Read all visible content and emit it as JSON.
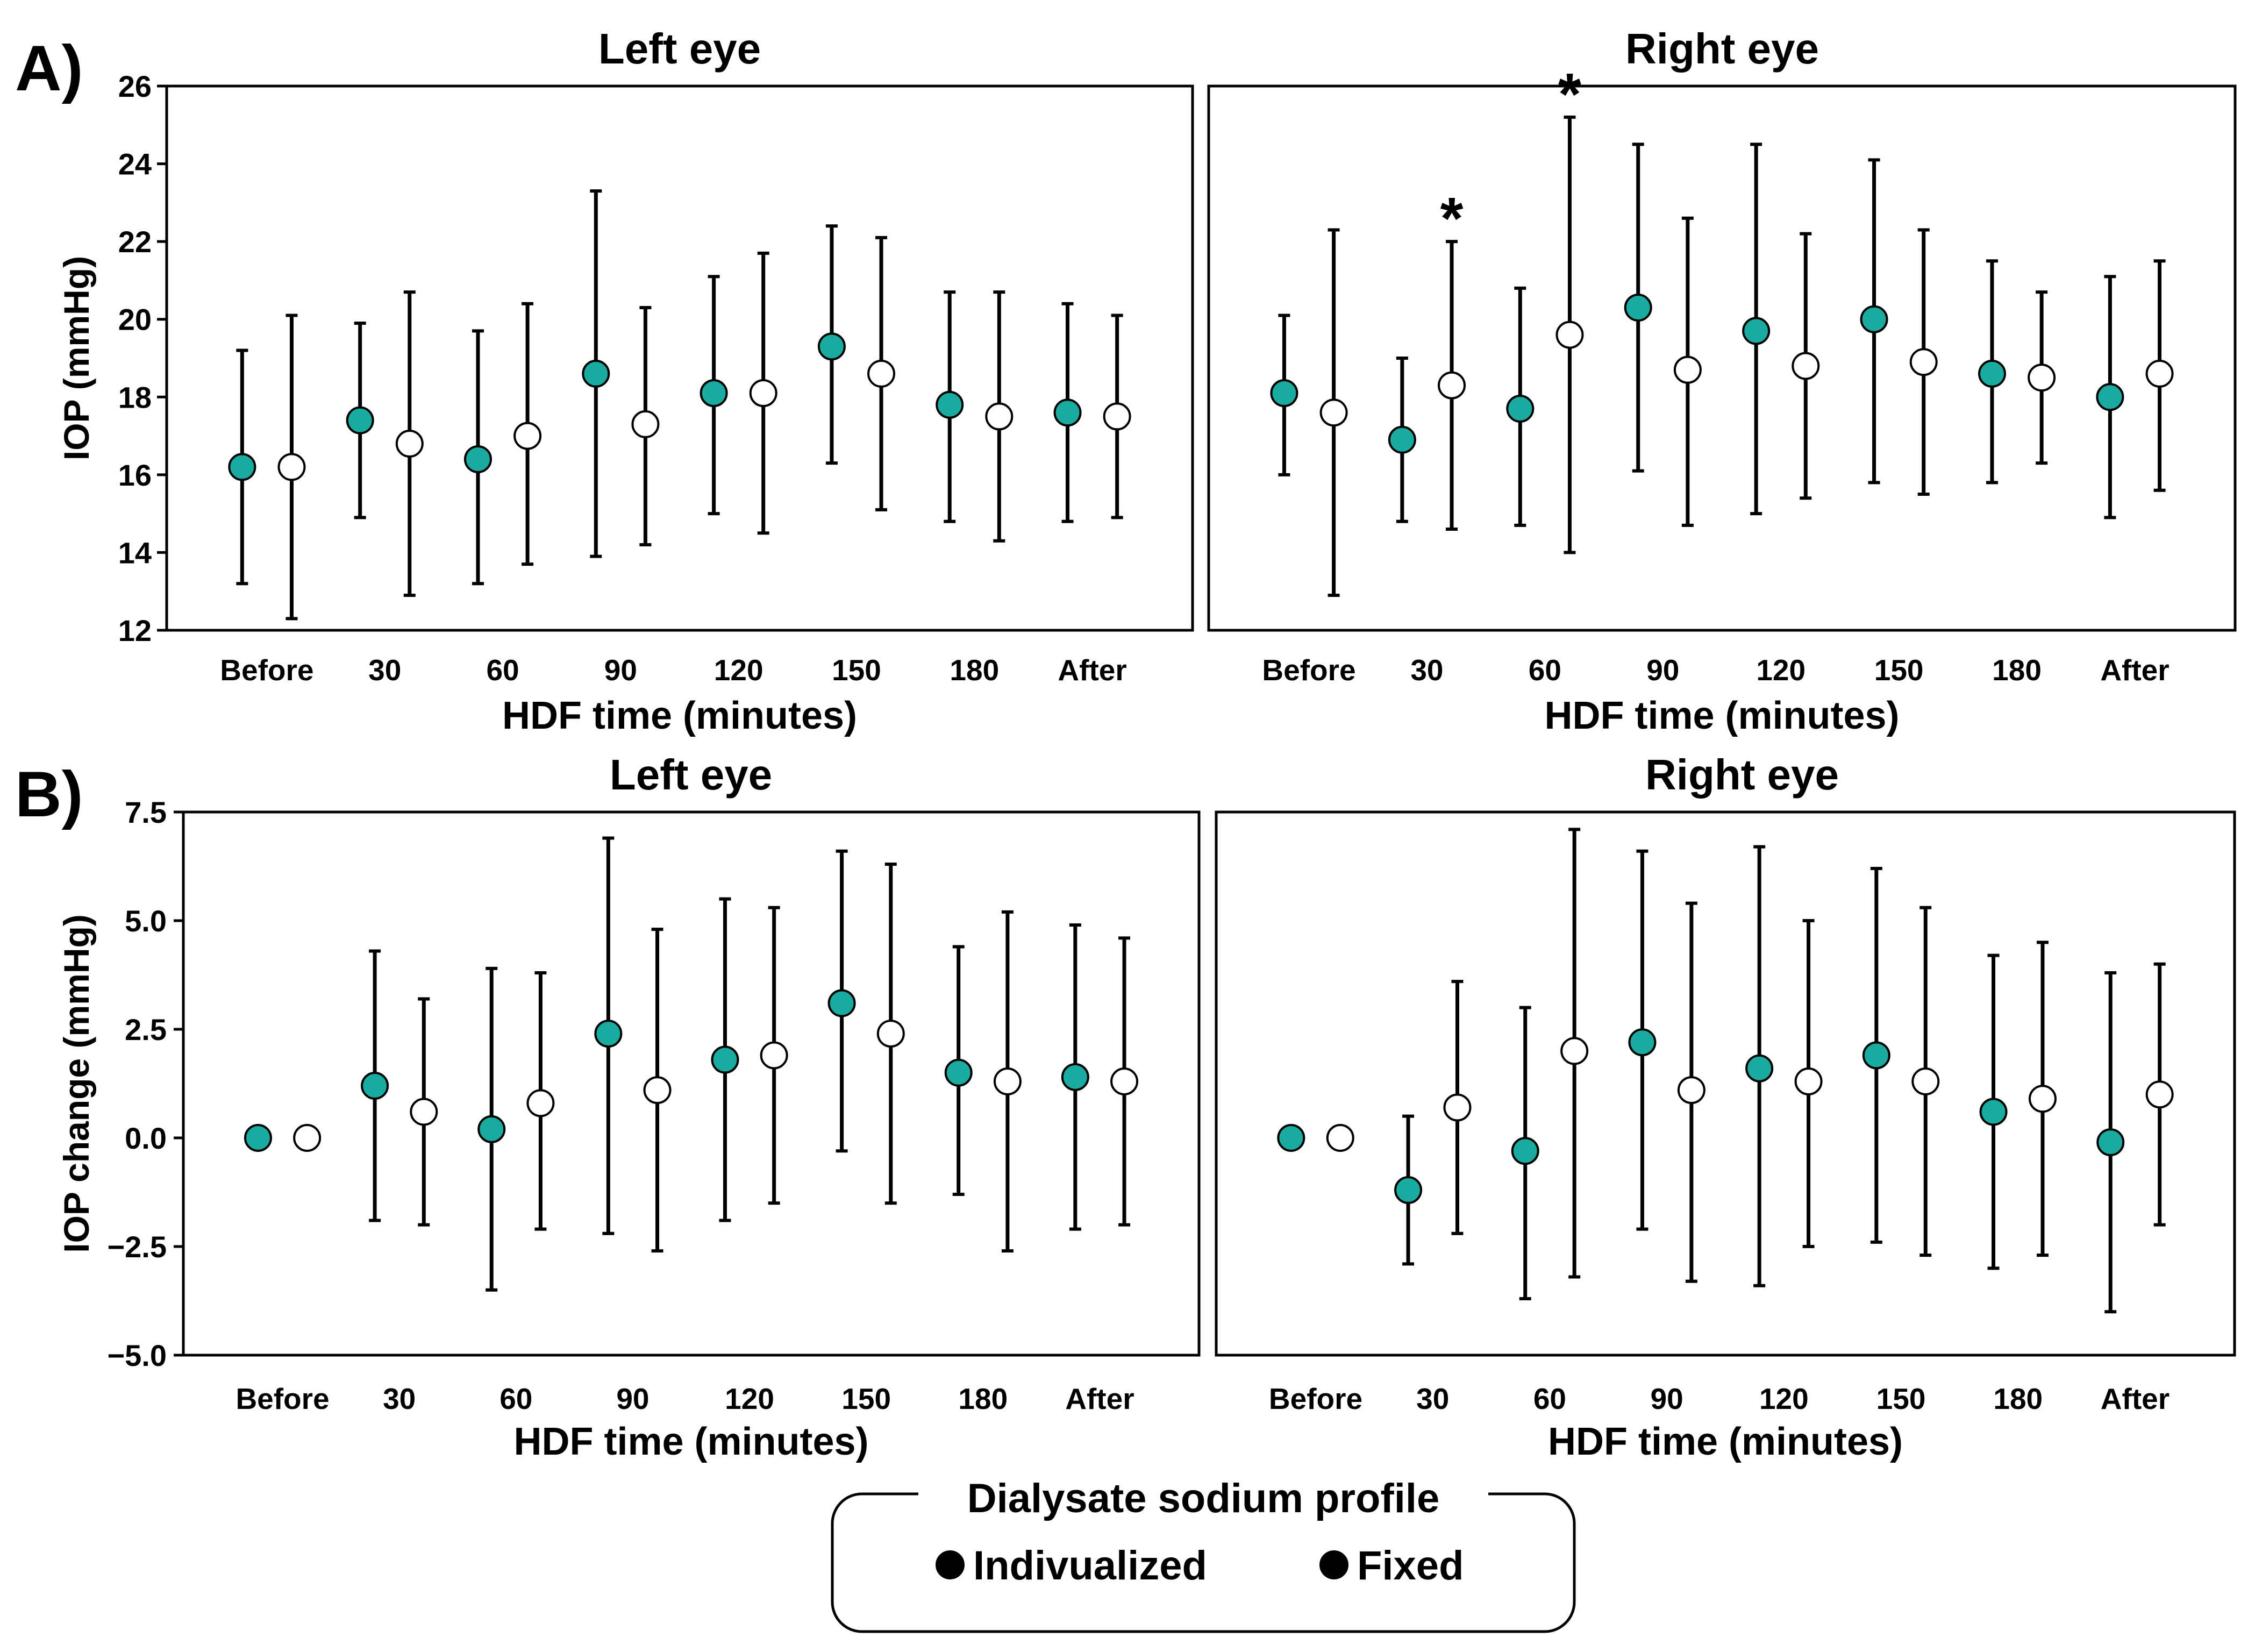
{
  "panels": [
    {
      "label": "A)"
    },
    {
      "label": "B)"
    }
  ],
  "legend": {
    "title": "Dialysate sodium profile",
    "items": [
      {
        "label": "Indivualized",
        "color": "#1aaba0",
        "marker": "filled-circle"
      },
      {
        "label": "Fixed",
        "color": "#ffffff",
        "marker": "open-circle"
      }
    ]
  },
  "chart_data": [
    {
      "type": "scatter",
      "panel": "A",
      "title": "Left eye",
      "xlabel": "HDF time (minutes)",
      "ylabel": "IOP (mmHg)",
      "categories": [
        "Before",
        "30",
        "60",
        "90",
        "120",
        "150",
        "180",
        "After"
      ],
      "ylim": [
        12,
        26
      ],
      "yticks": [
        "12",
        "14",
        "16",
        "18",
        "20",
        "22",
        "24",
        "26"
      ],
      "series": [
        {
          "name": "Indivualized",
          "values": [
            16.2,
            17.4,
            16.4,
            18.6,
            18.1,
            19.3,
            17.8,
            17.6
          ],
          "lower": [
            13.2,
            14.9,
            13.2,
            13.9,
            15.0,
            16.3,
            14.8,
            14.8
          ],
          "upper": [
            19.2,
            19.9,
            19.7,
            23.3,
            21.1,
            22.4,
            20.7,
            20.4
          ]
        },
        {
          "name": "Fixed",
          "values": [
            16.2,
            16.8,
            17.0,
            17.3,
            18.1,
            18.6,
            17.5,
            17.5
          ],
          "lower": [
            12.3,
            12.9,
            13.7,
            14.2,
            14.5,
            15.1,
            14.3,
            14.9
          ],
          "upper": [
            20.1,
            20.7,
            20.4,
            20.3,
            21.7,
            22.1,
            20.7,
            20.1
          ]
        }
      ],
      "annotations": []
    },
    {
      "type": "scatter",
      "panel": "A",
      "title": "Right eye",
      "xlabel": "HDF time (minutes)",
      "ylabel": "",
      "categories": [
        "Before",
        "30",
        "60",
        "90",
        "120",
        "150",
        "180",
        "After"
      ],
      "ylim": [
        12,
        26
      ],
      "yticks": [],
      "series": [
        {
          "name": "Indivualized",
          "values": [
            18.1,
            16.9,
            17.7,
            20.3,
            19.7,
            20.0,
            18.6,
            18.0
          ],
          "lower": [
            16.0,
            14.8,
            14.7,
            16.1,
            15.0,
            15.8,
            15.8,
            14.9
          ],
          "upper": [
            20.1,
            19.0,
            20.8,
            24.5,
            24.5,
            24.1,
            21.5,
            21.1
          ]
        },
        {
          "name": "Fixed",
          "values": [
            17.6,
            18.3,
            19.6,
            18.7,
            18.8,
            18.9,
            18.5,
            18.6
          ],
          "lower": [
            12.9,
            14.6,
            14.0,
            14.7,
            15.4,
            15.5,
            16.3,
            15.6
          ],
          "upper": [
            22.3,
            22.0,
            25.2,
            22.6,
            22.2,
            22.3,
            20.7,
            21.5
          ]
        }
      ],
      "annotations": [
        {
          "text": "*",
          "category": "30",
          "series": "Fixed"
        },
        {
          "text": "*",
          "category": "60",
          "series": "Fixed"
        }
      ]
    },
    {
      "type": "scatter",
      "panel": "B",
      "title": "Left eye",
      "xlabel": "HDF time (minutes)",
      "ylabel": "IOP change (mmHg)",
      "categories": [
        "Before",
        "30",
        "60",
        "90",
        "120",
        "150",
        "180",
        "After"
      ],
      "ylim": [
        -5,
        7.5
      ],
      "yticks": [
        "−5.0",
        "−2.5",
        "0.0",
        "2.5",
        "5.0",
        "7.5"
      ],
      "series": [
        {
          "name": "Indivualized",
          "values": [
            0.0,
            1.2,
            0.2,
            2.4,
            1.8,
            3.1,
            1.5,
            1.4
          ],
          "lower": [
            null,
            -1.9,
            -3.5,
            -2.2,
            -1.9,
            -0.3,
            -1.3,
            -2.1
          ],
          "upper": [
            null,
            4.3,
            3.9,
            6.9,
            5.5,
            6.6,
            4.4,
            4.9
          ]
        },
        {
          "name": "Fixed",
          "values": [
            0.0,
            0.6,
            0.8,
            1.1,
            1.9,
            2.4,
            1.3,
            1.3
          ],
          "lower": [
            null,
            -2.0,
            -2.1,
            -2.6,
            -1.5,
            -1.5,
            -2.6,
            -2.0
          ],
          "upper": [
            null,
            3.2,
            3.8,
            4.8,
            5.3,
            6.3,
            5.2,
            4.6
          ]
        }
      ],
      "annotations": []
    },
    {
      "type": "scatter",
      "panel": "B",
      "title": "Right eye",
      "xlabel": "HDF time (minutes)",
      "ylabel": "",
      "categories": [
        "Before",
        "30",
        "60",
        "90",
        "120",
        "150",
        "180",
        "After"
      ],
      "ylim": [
        -5,
        7.5
      ],
      "yticks": [],
      "series": [
        {
          "name": "Indivualized",
          "values": [
            0.0,
            -1.2,
            -0.3,
            2.2,
            1.6,
            1.9,
            0.6,
            -0.1
          ],
          "lower": [
            null,
            -2.9,
            -3.7,
            -2.1,
            -3.4,
            -2.4,
            -3.0,
            -4.0
          ],
          "upper": [
            null,
            0.5,
            3.0,
            6.6,
            6.7,
            6.2,
            4.2,
            3.8
          ]
        },
        {
          "name": "Fixed",
          "values": [
            0.0,
            0.7,
            2.0,
            1.1,
            1.3,
            1.3,
            0.9,
            1.0
          ],
          "lower": [
            null,
            -2.2,
            -3.2,
            -3.3,
            -2.5,
            -2.7,
            -2.7,
            -2.0
          ],
          "upper": [
            null,
            3.6,
            7.1,
            5.4,
            5.0,
            5.3,
            4.5,
            4.0
          ]
        }
      ],
      "annotations": []
    }
  ]
}
